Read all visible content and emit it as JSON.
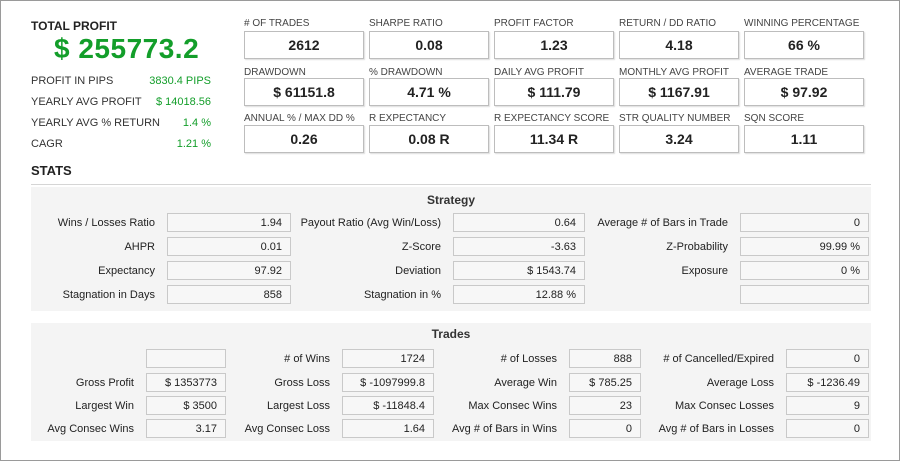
{
  "summary": {
    "total_profit_label": "TOTAL PROFIT",
    "total_profit_value": "$ 255773.2",
    "rows": [
      {
        "label": "PROFIT IN PIPS",
        "value": "3830.4 PIPS"
      },
      {
        "label": "YEARLY AVG PROFIT",
        "value": "$ 14018.56"
      },
      {
        "label": "YEARLY AVG % RETURN",
        "value": "1.4 %"
      },
      {
        "label": "CAGR",
        "value": "1.21 %"
      }
    ]
  },
  "metrics": [
    {
      "label": "# OF TRADES",
      "value": "2612"
    },
    {
      "label": "SHARPE RATIO",
      "value": "0.08"
    },
    {
      "label": "PROFIT FACTOR",
      "value": "1.23"
    },
    {
      "label": "RETURN / DD RATIO",
      "value": "4.18"
    },
    {
      "label": "WINNING PERCENTAGE",
      "value": "66 %"
    },
    {
      "label": "DRAWDOWN",
      "value": "$ 61151.8"
    },
    {
      "label": "% DRAWDOWN",
      "value": "4.71 %"
    },
    {
      "label": "DAILY AVG PROFIT",
      "value": "$ 111.79"
    },
    {
      "label": "MONTHLY AVG PROFIT",
      "value": "$ 1167.91"
    },
    {
      "label": "AVERAGE TRADE",
      "value": "$ 97.92"
    },
    {
      "label": "ANNUAL % / MAX DD %",
      "value": "0.26"
    },
    {
      "label": "R EXPECTANCY",
      "value": "0.08 R"
    },
    {
      "label": "R EXPECTANCY SCORE",
      "value": "11.34 R"
    },
    {
      "label": "STR QUALITY NUMBER",
      "value": "3.24"
    },
    {
      "label": "SQN SCORE",
      "value": "1.11"
    }
  ],
  "stats_title": "STATS",
  "strategy": {
    "title": "Strategy",
    "rows": [
      [
        {
          "label": "Wins / Losses Ratio",
          "value": "1.94"
        },
        {
          "label": "Payout Ratio (Avg Win/Loss)",
          "value": "0.64"
        },
        {
          "label": "Average # of Bars in Trade",
          "value": "0"
        }
      ],
      [
        {
          "label": "AHPR",
          "value": "0.01"
        },
        {
          "label": "Z-Score",
          "value": "-3.63"
        },
        {
          "label": "Z-Probability",
          "value": "99.99 %"
        }
      ],
      [
        {
          "label": "Expectancy",
          "value": "97.92"
        },
        {
          "label": "Deviation",
          "value": "$ 1543.74"
        },
        {
          "label": "Exposure",
          "value": "0 %"
        }
      ],
      [
        {
          "label": "Stagnation in Days",
          "value": "858"
        },
        {
          "label": "Stagnation in %",
          "value": "12.88 %"
        },
        {
          "label": "",
          "value": ""
        }
      ]
    ]
  },
  "trades": {
    "title": "Trades",
    "rows": [
      [
        {
          "label": "",
          "value": ""
        },
        {
          "label": "# of Wins",
          "value": "1724"
        },
        {
          "label": "# of Losses",
          "value": "888"
        },
        {
          "label": "# of Cancelled/Expired",
          "value": "0"
        }
      ],
      [
        {
          "label": "Gross Profit",
          "value": "$ 1353773"
        },
        {
          "label": "Gross Loss",
          "value": "$ -1097999.8"
        },
        {
          "label": "Average Win",
          "value": "$ 785.25"
        },
        {
          "label": "Average Loss",
          "value": "$ -1236.49"
        }
      ],
      [
        {
          "label": "Largest Win",
          "value": "$ 3500"
        },
        {
          "label": "Largest Loss",
          "value": "$ -11848.4"
        },
        {
          "label": "Max Consec Wins",
          "value": "23"
        },
        {
          "label": "Max Consec Losses",
          "value": "9"
        }
      ],
      [
        {
          "label": "Avg Consec Wins",
          "value": "3.17"
        },
        {
          "label": "Avg Consec Loss",
          "value": "1.64"
        },
        {
          "label": "Avg # of Bars in Wins",
          "value": "0"
        },
        {
          "label": "Avg # of Bars in Losses",
          "value": "0"
        }
      ]
    ]
  },
  "colors": {
    "profit_green": "#139e2a"
  }
}
